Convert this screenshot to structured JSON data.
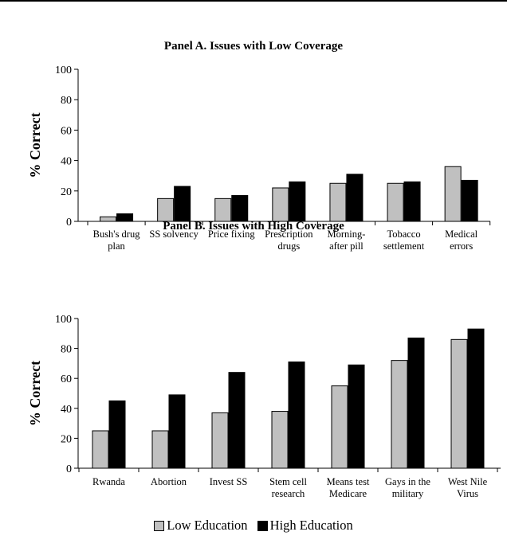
{
  "colors": {
    "low": "#c0c0c0",
    "high": "#000000"
  },
  "legend": {
    "low": "Low Education",
    "high": "High Education"
  },
  "chart_data": [
    {
      "type": "bar",
      "title": "Panel A.  Issues with Low Coverage",
      "ylabel": "% Correct",
      "ylim": [
        0,
        100
      ],
      "yticks": [
        "0",
        "20",
        "40",
        "60",
        "80",
        "100"
      ],
      "categories": [
        [
          "Bush's drug",
          "plan"
        ],
        [
          "SS solvency"
        ],
        [
          "Price fixing"
        ],
        [
          "Prescription",
          "drugs"
        ],
        [
          "Morning-",
          "after pill"
        ],
        [
          "Tobacco",
          "settlement"
        ],
        [
          "Medical",
          "errors"
        ]
      ],
      "series": [
        {
          "name": "Low Education",
          "values": [
            3,
            15,
            15,
            22,
            25,
            25,
            36
          ]
        },
        {
          "name": "High Education",
          "values": [
            5,
            23,
            17,
            26,
            31,
            26,
            27
          ]
        }
      ]
    },
    {
      "type": "bar",
      "title": "Panel B. Issues with High Coverage",
      "ylabel": "% Correct",
      "ylim": [
        0,
        100
      ],
      "yticks": [
        "0",
        "20",
        "40",
        "60",
        "80",
        "100"
      ],
      "categories": [
        [
          "Rwanda"
        ],
        [
          "Abortion"
        ],
        [
          "Invest SS"
        ],
        [
          "Stem cell",
          "research"
        ],
        [
          "Means test",
          "Medicare"
        ],
        [
          "Gays in the",
          "military"
        ],
        [
          "West Nile",
          "Virus"
        ]
      ],
      "series": [
        {
          "name": "Low Education",
          "values": [
            25,
            25,
            37,
            38,
            55,
            72,
            86
          ]
        },
        {
          "name": "High Education",
          "values": [
            45,
            49,
            64,
            71,
            69,
            87,
            93
          ]
        }
      ]
    }
  ]
}
